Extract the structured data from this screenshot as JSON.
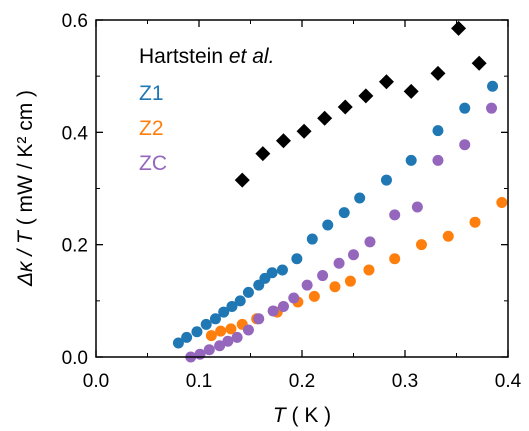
{
  "chart_data": {
    "type": "scatter",
    "title": "",
    "xlabel_symbol": "T",
    "xlabel_unit": " ( K )",
    "ylabel_symbol": "Δκ / T",
    "ylabel_unit": " ( mW / K² cm )",
    "xlim": [
      0,
      0.4
    ],
    "ylim": [
      0,
      0.6
    ],
    "xticks": [
      0.0,
      0.1,
      0.2,
      0.3,
      0.4
    ],
    "yticks": [
      0.0,
      0.2,
      0.4,
      0.6
    ],
    "xtick_labels": [
      "0.0",
      "0.1",
      "0.2",
      "0.3",
      "0.4"
    ],
    "ytick_labels": [
      "0.0",
      "0.2",
      "0.4",
      "0.6"
    ],
    "grid": false,
    "legend_position": "top-left",
    "series": [
      {
        "name_plain": "Hartstein ",
        "name_italic": "et al.",
        "color": "#000000",
        "marker": "diamond",
        "points": [
          [
            0.142,
            0.315
          ],
          [
            0.162,
            0.362
          ],
          [
            0.182,
            0.385
          ],
          [
            0.202,
            0.402
          ],
          [
            0.222,
            0.425
          ],
          [
            0.242,
            0.445
          ],
          [
            0.262,
            0.465
          ],
          [
            0.282,
            0.49
          ],
          [
            0.306,
            0.473
          ],
          [
            0.332,
            0.505
          ],
          [
            0.352,
            0.585
          ],
          [
            0.372,
            0.523
          ]
        ]
      },
      {
        "name": "Z1",
        "color": "#1f77b4",
        "marker": "circle",
        "points": [
          [
            0.08,
            0.025
          ],
          [
            0.088,
            0.035
          ],
          [
            0.098,
            0.045
          ],
          [
            0.107,
            0.058
          ],
          [
            0.116,
            0.068
          ],
          [
            0.124,
            0.08
          ],
          [
            0.132,
            0.09
          ],
          [
            0.14,
            0.1
          ],
          [
            0.148,
            0.115
          ],
          [
            0.158,
            0.128
          ],
          [
            0.164,
            0.14
          ],
          [
            0.171,
            0.15
          ],
          [
            0.181,
            0.155
          ],
          [
            0.195,
            0.175
          ],
          [
            0.21,
            0.21
          ],
          [
            0.225,
            0.235
          ],
          [
            0.241,
            0.257
          ],
          [
            0.256,
            0.283
          ],
          [
            0.282,
            0.315
          ],
          [
            0.306,
            0.35
          ],
          [
            0.332,
            0.403
          ],
          [
            0.358,
            0.443
          ],
          [
            0.385,
            0.482
          ]
        ]
      },
      {
        "name": "Z2",
        "color": "#ff7f0e",
        "marker": "circle",
        "points": [
          [
            0.112,
            0.038
          ],
          [
            0.121,
            0.046
          ],
          [
            0.131,
            0.05
          ],
          [
            0.142,
            0.058
          ],
          [
            0.156,
            0.068
          ],
          [
            0.176,
            0.08
          ],
          [
            0.196,
            0.098
          ],
          [
            0.212,
            0.108
          ],
          [
            0.232,
            0.125
          ],
          [
            0.247,
            0.135
          ],
          [
            0.265,
            0.155
          ],
          [
            0.29,
            0.175
          ],
          [
            0.316,
            0.2
          ],
          [
            0.342,
            0.215
          ],
          [
            0.368,
            0.24
          ],
          [
            0.394,
            0.275
          ]
        ]
      },
      {
        "name": "ZC",
        "color": "#9467bd",
        "marker": "circle",
        "points": [
          [
            0.092,
            0.0
          ],
          [
            0.101,
            0.005
          ],
          [
            0.11,
            0.013
          ],
          [
            0.12,
            0.02
          ],
          [
            0.128,
            0.028
          ],
          [
            0.137,
            0.035
          ],
          [
            0.148,
            0.048
          ],
          [
            0.158,
            0.068
          ],
          [
            0.172,
            0.082
          ],
          [
            0.182,
            0.09
          ],
          [
            0.192,
            0.105
          ],
          [
            0.205,
            0.128
          ],
          [
            0.22,
            0.145
          ],
          [
            0.236,
            0.167
          ],
          [
            0.25,
            0.182
          ],
          [
            0.266,
            0.205
          ],
          [
            0.29,
            0.253
          ],
          [
            0.312,
            0.267
          ],
          [
            0.332,
            0.35
          ],
          [
            0.358,
            0.378
          ],
          [
            0.384,
            0.443
          ]
        ]
      }
    ]
  }
}
